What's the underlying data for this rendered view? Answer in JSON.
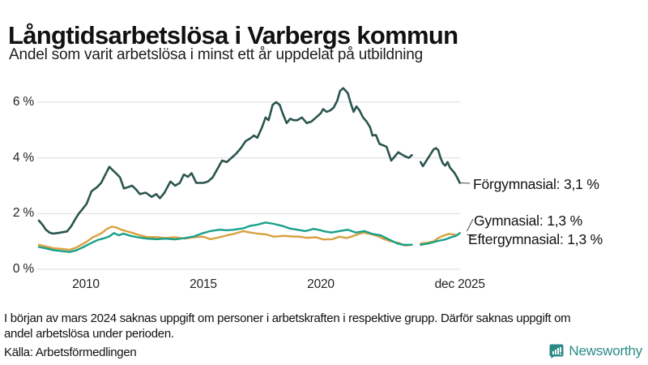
{
  "header": {
    "title": "Långtidsarbetslösa i Varbergs kommun",
    "subtitle": "Andel som varit arbetslösa i minst ett år uppdelat på utbildning"
  },
  "chart_data": {
    "type": "line",
    "title": "Långtidsarbetslösa i Varbergs kommun",
    "subtitle": "Andel som varit arbetslösa i minst ett år uppdelat på utbildning",
    "unit": "% av arbetskraften",
    "grid": true,
    "grid_color": "#dcdcdc",
    "x_axis": {
      "range_years": [
        2008.0,
        2026.1
      ],
      "ticks": [
        {
          "label": "2010",
          "year": 2010
        },
        {
          "label": "2015",
          "year": 2015
        },
        {
          "label": "2020",
          "year": 2020
        },
        {
          "label": "dec 2025",
          "year": 2025.92
        }
      ]
    },
    "y_axis": {
      "range": [
        0,
        6.8
      ],
      "ticks": [
        {
          "label": "6 %",
          "value": 6
        },
        {
          "label": "4 %",
          "value": 4
        },
        {
          "label": "2 %",
          "value": 2
        },
        {
          "label": "0 %",
          "value": 0
        }
      ]
    },
    "data_gap": {
      "from_year": 2023.88,
      "to_year": 2024.25,
      "reason": "saknas uppgift"
    },
    "series": [
      {
        "name": "Gymnasial",
        "color": "#d7a13e",
        "end_label": "Gymnasial: 1,3 %",
        "end_value": 1.3,
        "stroke_width": 2.4,
        "connector": [
          576.5,
          285,
          584,
          270
        ],
        "segments": [
          [
            [
              2008.0,
              0.88
            ],
            [
              2008.3,
              0.82
            ],
            [
              2008.6,
              0.76
            ],
            [
              2009.0,
              0.73
            ],
            [
              2009.3,
              0.7
            ],
            [
              2009.6,
              0.78
            ],
            [
              2009.8,
              0.88
            ],
            [
              2010.0,
              0.97
            ],
            [
              2010.3,
              1.15
            ],
            [
              2010.5,
              1.22
            ],
            [
              2010.7,
              1.32
            ],
            [
              2010.9,
              1.45
            ],
            [
              2011.1,
              1.53
            ],
            [
              2011.3,
              1.5
            ],
            [
              2011.5,
              1.42
            ],
            [
              2011.8,
              1.35
            ],
            [
              2012.0,
              1.3
            ],
            [
              2012.3,
              1.22
            ],
            [
              2012.6,
              1.16
            ],
            [
              2013.0,
              1.15
            ],
            [
              2013.4,
              1.12
            ],
            [
              2013.8,
              1.15
            ],
            [
              2014.2,
              1.1
            ],
            [
              2014.6,
              1.15
            ],
            [
              2015.0,
              1.17
            ],
            [
              2015.3,
              1.08
            ],
            [
              2015.7,
              1.15
            ],
            [
              2016.0,
              1.22
            ],
            [
              2016.3,
              1.27
            ],
            [
              2016.7,
              1.37
            ],
            [
              2017.0,
              1.32
            ],
            [
              2017.3,
              1.28
            ],
            [
              2017.7,
              1.25
            ],
            [
              2018.0,
              1.17
            ],
            [
              2018.4,
              1.2
            ],
            [
              2018.8,
              1.18
            ],
            [
              2019.1,
              1.17
            ],
            [
              2019.4,
              1.13
            ],
            [
              2019.8,
              1.15
            ],
            [
              2020.1,
              1.07
            ],
            [
              2020.5,
              1.08
            ],
            [
              2020.8,
              1.17
            ],
            [
              2021.1,
              1.12
            ],
            [
              2021.4,
              1.2
            ],
            [
              2021.8,
              1.32
            ],
            [
              2022.1,
              1.27
            ],
            [
              2022.4,
              1.2
            ],
            [
              2022.7,
              1.08
            ],
            [
              2023.0,
              1.0
            ],
            [
              2023.3,
              0.95
            ],
            [
              2023.6,
              0.85
            ],
            [
              2023.88,
              0.88
            ]
          ],
          [
            [
              2024.25,
              0.93
            ],
            [
              2024.5,
              0.95
            ],
            [
              2024.8,
              1.0
            ],
            [
              2025.0,
              1.12
            ],
            [
              2025.2,
              1.2
            ],
            [
              2025.45,
              1.27
            ],
            [
              2025.65,
              1.25
            ],
            [
              2025.8,
              1.22
            ],
            [
              2025.92,
              1.3
            ]
          ]
        ]
      },
      {
        "name": "Eftergymnasial",
        "color": "#17a08b",
        "end_label": "Eftergymnasial: 1,3 %",
        "end_value": 1.3,
        "stroke_width": 2.4,
        "connector": [
          576.5,
          289,
          586,
          292
        ],
        "segments": [
          [
            [
              2008.0,
              0.8
            ],
            [
              2008.3,
              0.75
            ],
            [
              2008.6,
              0.69
            ],
            [
              2009.0,
              0.65
            ],
            [
              2009.3,
              0.62
            ],
            [
              2009.6,
              0.68
            ],
            [
              2009.9,
              0.8
            ],
            [
              2010.2,
              0.93
            ],
            [
              2010.5,
              1.05
            ],
            [
              2010.8,
              1.12
            ],
            [
              2011.0,
              1.18
            ],
            [
              2011.2,
              1.3
            ],
            [
              2011.4,
              1.22
            ],
            [
              2011.6,
              1.28
            ],
            [
              2011.9,
              1.2
            ],
            [
              2012.2,
              1.15
            ],
            [
              2012.6,
              1.1
            ],
            [
              2013.0,
              1.08
            ],
            [
              2013.4,
              1.1
            ],
            [
              2013.8,
              1.07
            ],
            [
              2014.2,
              1.12
            ],
            [
              2014.6,
              1.18
            ],
            [
              2015.0,
              1.3
            ],
            [
              2015.3,
              1.37
            ],
            [
              2015.7,
              1.42
            ],
            [
              2016.0,
              1.4
            ],
            [
              2016.3,
              1.42
            ],
            [
              2016.7,
              1.47
            ],
            [
              2017.0,
              1.56
            ],
            [
              2017.3,
              1.6
            ],
            [
              2017.65,
              1.68
            ],
            [
              2018.0,
              1.63
            ],
            [
              2018.35,
              1.56
            ],
            [
              2018.7,
              1.46
            ],
            [
              2019.0,
              1.42
            ],
            [
              2019.35,
              1.37
            ],
            [
              2019.7,
              1.45
            ],
            [
              2020.0,
              1.4
            ],
            [
              2020.1,
              1.37
            ],
            [
              2020.45,
              1.32
            ],
            [
              2020.8,
              1.37
            ],
            [
              2021.15,
              1.42
            ],
            [
              2021.5,
              1.32
            ],
            [
              2021.85,
              1.37
            ],
            [
              2022.2,
              1.27
            ],
            [
              2022.55,
              1.22
            ],
            [
              2022.9,
              1.07
            ],
            [
              2023.25,
              0.93
            ],
            [
              2023.5,
              0.88
            ],
            [
              2023.88,
              0.88
            ]
          ],
          [
            [
              2024.25,
              0.88
            ],
            [
              2024.6,
              0.93
            ],
            [
              2025.0,
              1.02
            ],
            [
              2025.3,
              1.07
            ],
            [
              2025.55,
              1.15
            ],
            [
              2025.75,
              1.2
            ],
            [
              2025.92,
              1.3
            ]
          ]
        ]
      },
      {
        "name": "Förgymnasial",
        "color": "#2a554e",
        "end_label": "Förgymnasial: 3,1 %",
        "end_value": 3.1,
        "stroke_width": 2.6,
        "connector": [
          569,
          225.5,
          580,
          226
        ],
        "segments": [
          [
            [
              2008.0,
              1.75
            ],
            [
              2008.15,
              1.6
            ],
            [
              2008.3,
              1.42
            ],
            [
              2008.45,
              1.32
            ],
            [
              2008.6,
              1.28
            ],
            [
              2008.8,
              1.3
            ],
            [
              2009.0,
              1.33
            ],
            [
              2009.2,
              1.36
            ],
            [
              2009.38,
              1.55
            ],
            [
              2009.55,
              1.8
            ],
            [
              2009.7,
              2.0
            ],
            [
              2009.85,
              2.15
            ],
            [
              2010.03,
              2.35
            ],
            [
              2010.24,
              2.8
            ],
            [
              2010.48,
              2.95
            ],
            [
              2010.65,
              3.1
            ],
            [
              2010.8,
              3.35
            ],
            [
              2011.0,
              3.68
            ],
            [
              2011.15,
              3.55
            ],
            [
              2011.28,
              3.45
            ],
            [
              2011.45,
              3.3
            ],
            [
              2011.62,
              2.9
            ],
            [
              2011.8,
              2.95
            ],
            [
              2011.97,
              3.0
            ],
            [
              2012.15,
              2.85
            ],
            [
              2012.3,
              2.7
            ],
            [
              2012.55,
              2.75
            ],
            [
              2012.8,
              2.6
            ],
            [
              2013.0,
              2.7
            ],
            [
              2013.15,
              2.55
            ],
            [
              2013.35,
              2.75
            ],
            [
              2013.6,
              3.15
            ],
            [
              2013.8,
              3.0
            ],
            [
              2014.0,
              3.1
            ],
            [
              2014.17,
              3.4
            ],
            [
              2014.35,
              3.32
            ],
            [
              2014.5,
              3.45
            ],
            [
              2014.7,
              3.1
            ],
            [
              2015.0,
              3.1
            ],
            [
              2015.2,
              3.15
            ],
            [
              2015.4,
              3.3
            ],
            [
              2015.6,
              3.6
            ],
            [
              2015.8,
              3.9
            ],
            [
              2016.0,
              3.85
            ],
            [
              2016.2,
              4.0
            ],
            [
              2016.4,
              4.15
            ],
            [
              2016.6,
              4.35
            ],
            [
              2016.8,
              4.6
            ],
            [
              2017.0,
              4.7
            ],
            [
              2017.15,
              4.8
            ],
            [
              2017.3,
              4.72
            ],
            [
              2017.5,
              5.1
            ],
            [
              2017.65,
              5.45
            ],
            [
              2017.78,
              5.35
            ],
            [
              2017.95,
              5.9
            ],
            [
              2018.1,
              6.0
            ],
            [
              2018.25,
              5.9
            ],
            [
              2018.4,
              5.55
            ],
            [
              2018.55,
              5.25
            ],
            [
              2018.7,
              5.4
            ],
            [
              2018.85,
              5.35
            ],
            [
              2019.0,
              5.35
            ],
            [
              2019.2,
              5.45
            ],
            [
              2019.4,
              5.25
            ],
            [
              2019.6,
              5.3
            ],
            [
              2019.8,
              5.45
            ],
            [
              2020.0,
              5.6
            ],
            [
              2020.1,
              5.75
            ],
            [
              2020.25,
              5.65
            ],
            [
              2020.4,
              5.7
            ],
            [
              2020.55,
              5.8
            ],
            [
              2020.7,
              6.05
            ],
            [
              2020.82,
              6.4
            ],
            [
              2020.95,
              6.5
            ],
            [
              2021.05,
              6.42
            ],
            [
              2021.15,
              6.32
            ],
            [
              2021.28,
              5.95
            ],
            [
              2021.4,
              5.65
            ],
            [
              2021.52,
              5.85
            ],
            [
              2021.65,
              5.7
            ],
            [
              2021.8,
              5.45
            ],
            [
              2021.95,
              5.3
            ],
            [
              2022.1,
              5.1
            ],
            [
              2022.2,
              4.8
            ],
            [
              2022.35,
              4.82
            ],
            [
              2022.5,
              4.5
            ],
            [
              2022.65,
              4.45
            ],
            [
              2022.8,
              4.4
            ],
            [
              2023.0,
              3.9
            ],
            [
              2023.15,
              4.05
            ],
            [
              2023.3,
              4.2
            ],
            [
              2023.45,
              4.12
            ],
            [
              2023.6,
              4.05
            ],
            [
              2023.75,
              4.0
            ],
            [
              2023.88,
              4.1
            ]
          ],
          [
            [
              2024.25,
              3.85
            ],
            [
              2024.35,
              3.7
            ],
            [
              2024.5,
              3.9
            ],
            [
              2024.65,
              4.1
            ],
            [
              2024.8,
              4.3
            ],
            [
              2024.9,
              4.35
            ],
            [
              2025.0,
              4.28
            ],
            [
              2025.1,
              4.0
            ],
            [
              2025.2,
              3.8
            ],
            [
              2025.3,
              3.72
            ],
            [
              2025.4,
              3.85
            ],
            [
              2025.5,
              3.65
            ],
            [
              2025.6,
              3.55
            ],
            [
              2025.7,
              3.45
            ],
            [
              2025.8,
              3.3
            ],
            [
              2025.92,
              3.1
            ]
          ]
        ]
      }
    ],
    "annotation_color": "#444444"
  },
  "labels": {
    "forgymnasial": "Förgymnasial: 3,1 %",
    "gymnasial": "Gymnasial: 1,3 %",
    "eftergymnasial": "Eftergymnasial: 1,3 %"
  },
  "footer": {
    "note_line1": "I början av mars 2024 saknas uppgift om personer i arbetskraften i respektive grupp. Därför saknas uppgift om",
    "note_line2": "andel arbetslösa under perioden.",
    "source": "Källa: Arbetsförmedlingen",
    "brand": "Newsworthy",
    "brand_color": "#2a8a87"
  }
}
